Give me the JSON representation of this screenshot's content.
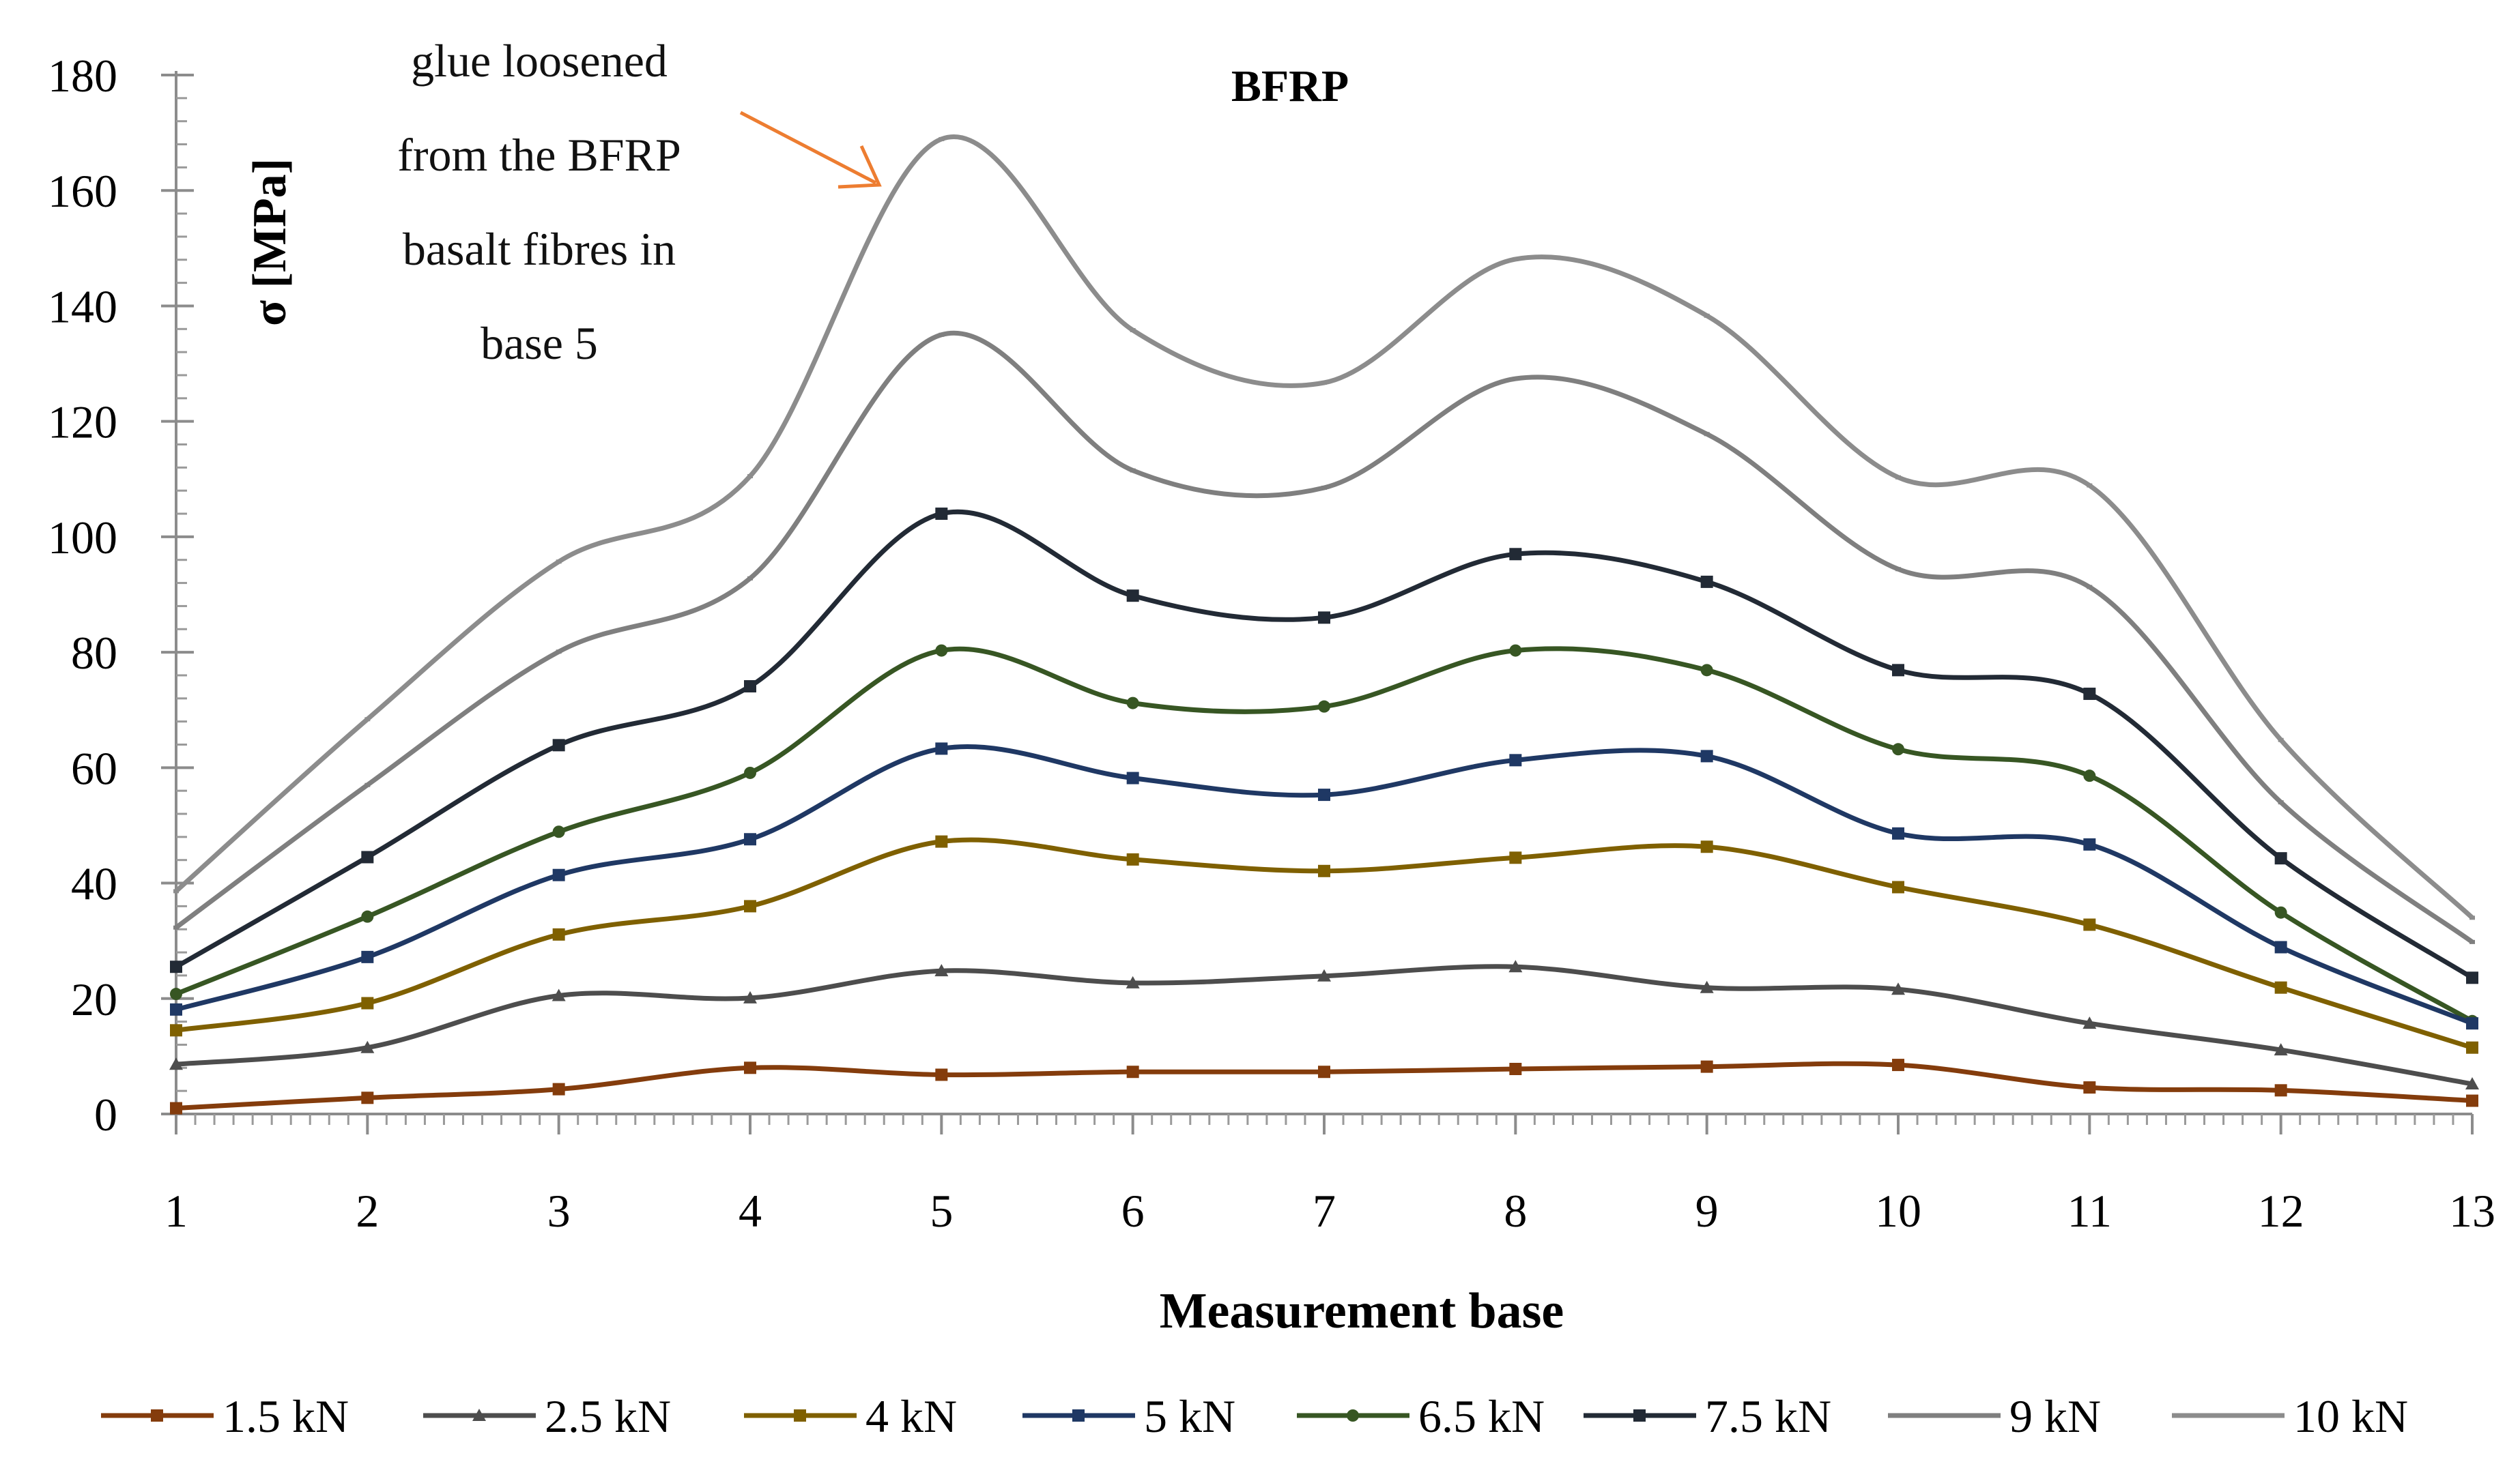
{
  "chart_data": {
    "type": "line",
    "title": "BFRP",
    "xlabel": "Measurement base",
    "ylabel": "σ [MPa]",
    "ylim": [
      0,
      180
    ],
    "yticks": [
      0,
      20,
      40,
      60,
      80,
      100,
      120,
      140,
      160,
      180
    ],
    "categories": [
      "1",
      "2",
      "3",
      "4",
      "5",
      "6",
      "7",
      "8",
      "9",
      "10",
      "11",
      "12",
      "13"
    ],
    "annotation": {
      "lines": [
        "glue loosened",
        "from the BFRP",
        "basalt fibres in",
        "base 5"
      ],
      "arrow_color": "#ED7D31"
    },
    "legend_position": "bottom",
    "series": [
      {
        "name": "1.5 kN",
        "color": "#843C0C",
        "marker": "square",
        "values": [
          1.0,
          2.8,
          4.3,
          8.0,
          6.8,
          7.3,
          7.3,
          7.8,
          8.2,
          8.5,
          4.6,
          4.1,
          2.3
        ]
      },
      {
        "name": "2.5 kN",
        "color": "#4D4D4D",
        "marker": "triangle",
        "values": [
          8.6,
          11.5,
          20.5,
          20.1,
          24.8,
          22.7,
          23.9,
          25.5,
          21.9,
          21.6,
          15.7,
          11.1,
          5.2
        ]
      },
      {
        "name": "4 kN",
        "color": "#7F6000",
        "marker": "square",
        "values": [
          14.5,
          19.2,
          31.1,
          36.0,
          47.2,
          44.1,
          42.1,
          44.4,
          46.3,
          39.3,
          32.8,
          21.9,
          11.5
        ]
      },
      {
        "name": "5 kN",
        "color": "#1F3864",
        "marker": "square",
        "values": [
          18.1,
          27.2,
          41.4,
          47.6,
          63.3,
          58.2,
          55.3,
          61.3,
          62.0,
          48.6,
          46.7,
          28.9,
          15.7
        ]
      },
      {
        "name": "6.5 kN",
        "color": "#375623",
        "marker": "circle",
        "values": [
          20.8,
          34.2,
          48.9,
          59.1,
          80.3,
          71.2,
          70.6,
          80.3,
          76.9,
          63.2,
          58.6,
          34.9,
          16.1
        ]
      },
      {
        "name": "7.5 kN",
        "color": "#222A35",
        "marker": "square",
        "values": [
          25.5,
          44.5,
          63.9,
          74.1,
          104.0,
          89.8,
          86.0,
          97.0,
          92.2,
          76.9,
          72.8,
          44.3,
          23.6
        ]
      },
      {
        "name": "9 kN",
        "color": "#7F7F7F",
        "marker": "none",
        "values": [
          32.3,
          57.0,
          80.1,
          92.8,
          135.0,
          111.5,
          108.5,
          127.4,
          117.8,
          94.4,
          91.3,
          54.0,
          29.8
        ]
      },
      {
        "name": "10 kN",
        "color": "#8C8C8C",
        "marker": "none",
        "values": [
          38.6,
          68.4,
          95.7,
          110.5,
          168.9,
          135.8,
          126.7,
          148.1,
          138.3,
          110.3,
          108.9,
          64.8,
          34.0
        ]
      }
    ]
  }
}
